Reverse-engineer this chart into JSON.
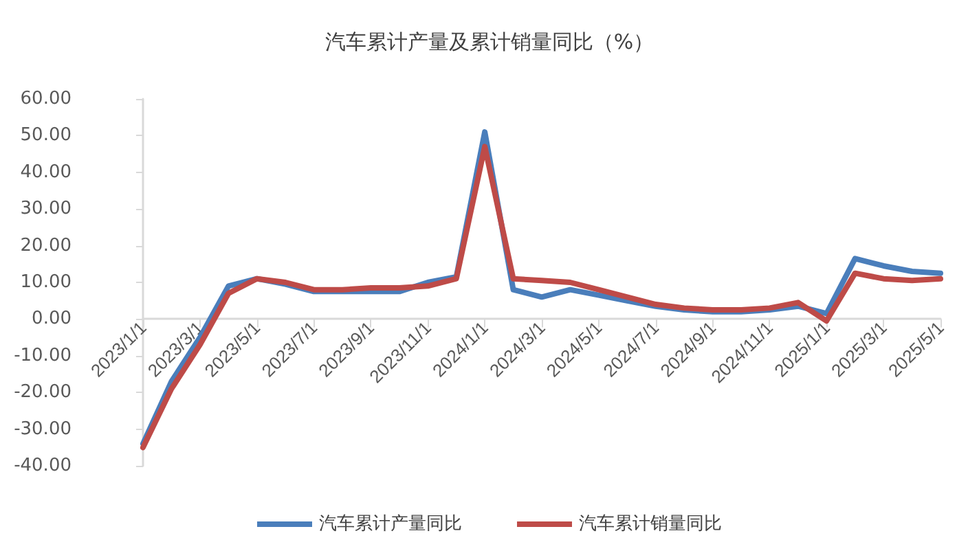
{
  "chart_data": {
    "type": "line",
    "title": "汽车累计产量及累计销量同比（%）",
    "categories": [
      "2023/1/1",
      null,
      "2023/3/1",
      null,
      "2023/5/1",
      null,
      "2023/7/1",
      null,
      "2023/9/1",
      null,
      "2023/11/1",
      null,
      "2024/1/1",
      null,
      "2024/3/1",
      null,
      "2024/5/1",
      null,
      "2024/7/1",
      null,
      "2024/9/1",
      null,
      "2024/11/1",
      null,
      "2025/1/1",
      null,
      "2025/3/1",
      null,
      "2025/5/1"
    ],
    "series": [
      {
        "name": "汽车累计产量同比",
        "color": "#4a7ebb",
        "values": [
          -34,
          -17,
          -5,
          9,
          11,
          9.5,
          7.5,
          7.5,
          7.5,
          7.5,
          10,
          11.5,
          51,
          8,
          6,
          8,
          6.5,
          5,
          3.5,
          2.5,
          2,
          2,
          2.5,
          3.5,
          1.5,
          16.5,
          14.5,
          13,
          12.5
        ]
      },
      {
        "name": "汽车累计销量同比",
        "color": "#be4b48",
        "values": [
          -35,
          -19,
          -7,
          7,
          11,
          10,
          8,
          8,
          8.5,
          8.5,
          9,
          11,
          47,
          11,
          10.5,
          10,
          8,
          6,
          4,
          3,
          2.5,
          2.5,
          3,
          4.5,
          -0.5,
          12.5,
          11,
          10.5,
          11
        ]
      }
    ],
    "ylim": [
      -40,
      60
    ],
    "yticks": [
      {
        "value": -40,
        "label": "-40.00"
      },
      {
        "value": -30,
        "label": "-30.00"
      },
      {
        "value": -20,
        "label": "-20.00"
      },
      {
        "value": -10,
        "label": "-10.00"
      },
      {
        "value": 0,
        "label": "0.00"
      },
      {
        "value": 10,
        "label": "10.00"
      },
      {
        "value": 20,
        "label": "20.00"
      },
      {
        "value": 30,
        "label": "30.00"
      },
      {
        "value": 40,
        "label": "40.00"
      },
      {
        "value": 50,
        "label": "50.00"
      },
      {
        "value": 60,
        "label": "60.00"
      }
    ],
    "grid": false,
    "legend": "bottom",
    "marker": "none",
    "line_style": "solid"
  }
}
